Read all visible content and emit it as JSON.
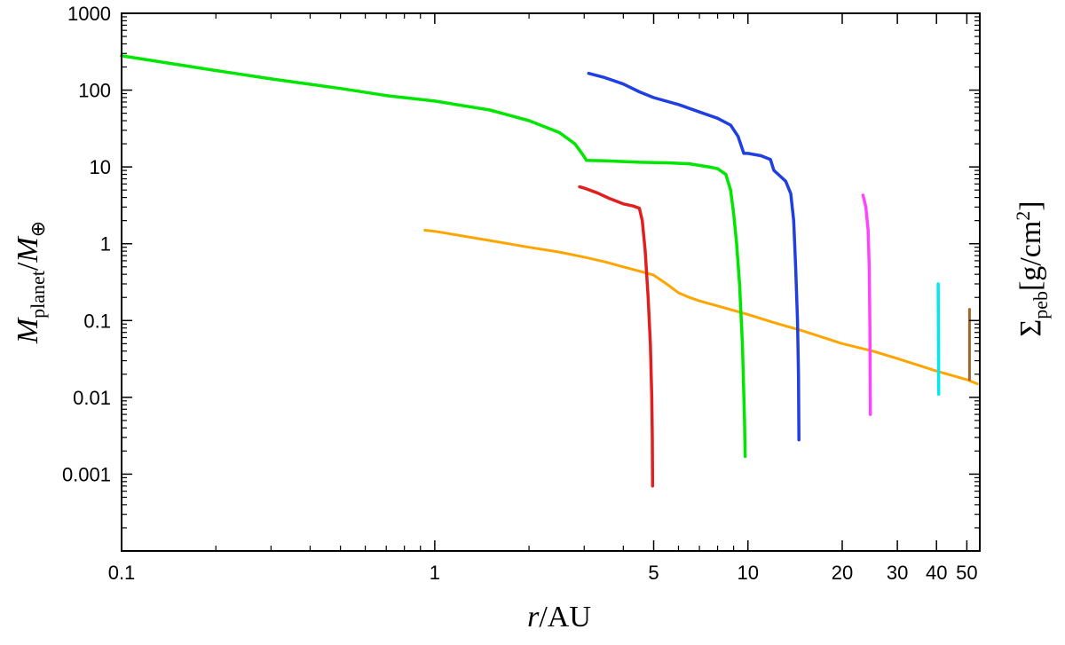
{
  "chart_data": {
    "type": "line",
    "xlabel": "r/AU",
    "ylabel_left": "M_planet/M_⊕",
    "ylabel_right": "Σ_peb[g/cm²]",
    "xscale": "log",
    "yscale": "log",
    "xlim": [
      0.1,
      55
    ],
    "ylim": [
      0.0001,
      1000
    ],
    "grid": false,
    "x_ticks": [
      {
        "v": 0.1,
        "label": "0.1"
      },
      {
        "v": 1,
        "label": "1"
      },
      {
        "v": 5,
        "label": "5"
      },
      {
        "v": 10,
        "label": "10"
      },
      {
        "v": 20,
        "label": "20"
      },
      {
        "v": 30,
        "label": "30"
      },
      {
        "v": 40,
        "label": "40"
      },
      {
        "v": 50,
        "label": "50"
      }
    ],
    "y_ticks": [
      {
        "v": 0.001,
        "label": "0.001"
      },
      {
        "v": 0.01,
        "label": "0.01"
      },
      {
        "v": 0.1,
        "label": "0.1"
      },
      {
        "v": 1,
        "label": "1"
      },
      {
        "v": 10,
        "label": "10"
      },
      {
        "v": 100,
        "label": "100"
      },
      {
        "v": 1000,
        "label": "1000"
      }
    ],
    "series": [
      {
        "color": "#ffa500",
        "width": 3,
        "points": [
          [
            0.93,
            1.5
          ],
          [
            1,
            1.45
          ],
          [
            1.5,
            1.1
          ],
          [
            2,
            0.9
          ],
          [
            2.5,
            0.78
          ],
          [
            3,
            0.67
          ],
          [
            3.5,
            0.58
          ],
          [
            4,
            0.5
          ],
          [
            4.5,
            0.44
          ],
          [
            5,
            0.39
          ],
          [
            5.5,
            0.3
          ],
          [
            6,
            0.23
          ],
          [
            6.5,
            0.2
          ],
          [
            7,
            0.18
          ],
          [
            8,
            0.155
          ],
          [
            10,
            0.12
          ],
          [
            12,
            0.095
          ],
          [
            15,
            0.073
          ],
          [
            20,
            0.05
          ],
          [
            25,
            0.04
          ],
          [
            30,
            0.032
          ],
          [
            40,
            0.022
          ],
          [
            50,
            0.017
          ],
          [
            54,
            0.015
          ]
        ]
      },
      {
        "color": "#00e600",
        "width": 3.5,
        "points": [
          [
            0.1,
            280
          ],
          [
            0.2,
            180
          ],
          [
            0.3,
            140
          ],
          [
            0.5,
            105
          ],
          [
            0.7,
            85
          ],
          [
            1,
            72
          ],
          [
            1.5,
            55
          ],
          [
            2,
            40
          ],
          [
            2.5,
            28
          ],
          [
            2.8,
            20
          ],
          [
            2.95,
            15
          ],
          [
            3.05,
            12.2
          ],
          [
            3.5,
            12
          ],
          [
            4.5,
            11.5
          ],
          [
            5.5,
            11.3
          ],
          [
            6.5,
            11
          ],
          [
            7.5,
            10
          ],
          [
            8,
            9.5
          ],
          [
            8.5,
            8
          ],
          [
            8.8,
            5
          ],
          [
            9,
            2.5
          ],
          [
            9.2,
            1
          ],
          [
            9.4,
            0.3
          ],
          [
            9.6,
            0.05
          ],
          [
            9.75,
            0.005
          ],
          [
            9.8,
            0.0017
          ]
        ]
      },
      {
        "color": "#1f3fe0",
        "width": 3.5,
        "points": [
          [
            3.1,
            165
          ],
          [
            3.5,
            145
          ],
          [
            4,
            120
          ],
          [
            4.5,
            95
          ],
          [
            5,
            80
          ],
          [
            6,
            65
          ],
          [
            7,
            52
          ],
          [
            8,
            43
          ],
          [
            8.8,
            35
          ],
          [
            9.3,
            25
          ],
          [
            9.6,
            17
          ],
          [
            9.7,
            15
          ],
          [
            10,
            15
          ],
          [
            11,
            14
          ],
          [
            11.8,
            12.5
          ],
          [
            12.1,
            9
          ],
          [
            12.5,
            8
          ],
          [
            13.2,
            6.5
          ],
          [
            13.7,
            4.5
          ],
          [
            14,
            2
          ],
          [
            14.2,
            0.5
          ],
          [
            14.4,
            0.1
          ],
          [
            14.5,
            0.02
          ],
          [
            14.55,
            0.0028
          ]
        ]
      },
      {
        "color": "#e02020",
        "width": 3.5,
        "points": [
          [
            2.9,
            5.5
          ],
          [
            3,
            5.3
          ],
          [
            3.3,
            4.6
          ],
          [
            3.6,
            3.9
          ],
          [
            4,
            3.3
          ],
          [
            4.3,
            3.1
          ],
          [
            4.5,
            2.9
          ],
          [
            4.6,
            2
          ],
          [
            4.7,
            0.8
          ],
          [
            4.8,
            0.2
          ],
          [
            4.88,
            0.05
          ],
          [
            4.93,
            0.01
          ],
          [
            4.95,
            0.003
          ],
          [
            4.96,
            0.0007
          ]
        ]
      },
      {
        "color": "#ff44ff",
        "width": 3.5,
        "points": [
          [
            23.3,
            4.3
          ],
          [
            23.8,
            3
          ],
          [
            24.2,
            1.5
          ],
          [
            24.4,
            0.5
          ],
          [
            24.5,
            0.1
          ],
          [
            24.55,
            0.03
          ],
          [
            24.6,
            0.006
          ]
        ]
      },
      {
        "color": "#00e8f0",
        "width": 3.5,
        "points": [
          [
            40.5,
            0.3
          ],
          [
            40.55,
            0.1
          ],
          [
            40.6,
            0.03
          ],
          [
            40.65,
            0.011
          ]
        ]
      },
      {
        "color": "#a0662a",
        "width": 3,
        "points": [
          [
            51,
            0.14
          ],
          [
            51,
            0.05
          ],
          [
            51,
            0.017
          ]
        ]
      }
    ]
  }
}
